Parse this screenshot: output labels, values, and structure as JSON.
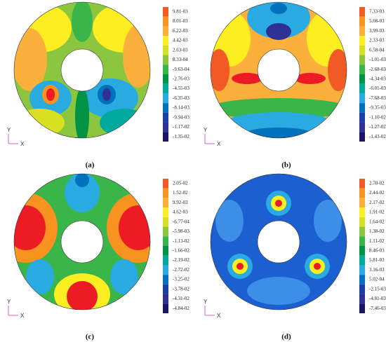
{
  "panels": [
    {
      "label": "(a)",
      "axis_y": "Y",
      "axis_x": "X",
      "colorbar": [
        "9.81-03",
        "8.01-03",
        "6.22-03",
        "4.42-03",
        "2.63-03",
        "8.33-04",
        "-9.63-04",
        "-2.76-03",
        "-4.55-03",
        "-6.35-03",
        "-8.14-03",
        "-9.94-03",
        "-1.17-02",
        "-1.35-02"
      ]
    },
    {
      "label": "(b)",
      "axis_y": "Y",
      "axis_x": "X",
      "colorbar": [
        "7.33-03",
        "5.66-03",
        "3.99-03",
        "2.33-03",
        "6.58-04",
        "-1.01-03",
        "-2.68-03",
        "-4.34-03",
        "-6.01-03",
        "-7.68-03",
        "-9.35-03",
        "-1.10-02",
        "-1.27-02",
        "-1.43-02"
      ]
    },
    {
      "label": "(c)",
      "axis_y": "Y",
      "axis_x": "X",
      "colorbar": [
        "2.05-02",
        "1.52-02",
        "9.92-03",
        "4.62-03",
        "-6.77-04",
        "-5.98-03",
        "-1.13-02",
        "-1.66-02",
        "-2.19-02",
        "-2.72-02",
        "-3.25-02",
        "-3.78-02",
        "-4.31-02",
        "-4.84-02"
      ]
    },
    {
      "label": "(d)",
      "axis_y": "Y",
      "axis_x": "X",
      "colorbar": [
        "2.70-02",
        "2.44-02",
        "2.17-02",
        "1.91-02",
        "1.64-02",
        "1.38-02",
        "1.11-02",
        "8.46-03",
        "5.81-03",
        "3.16-03",
        "5.02-04",
        "-2.15-03",
        "-4.81-03",
        "-7.46-03"
      ]
    }
  ]
}
